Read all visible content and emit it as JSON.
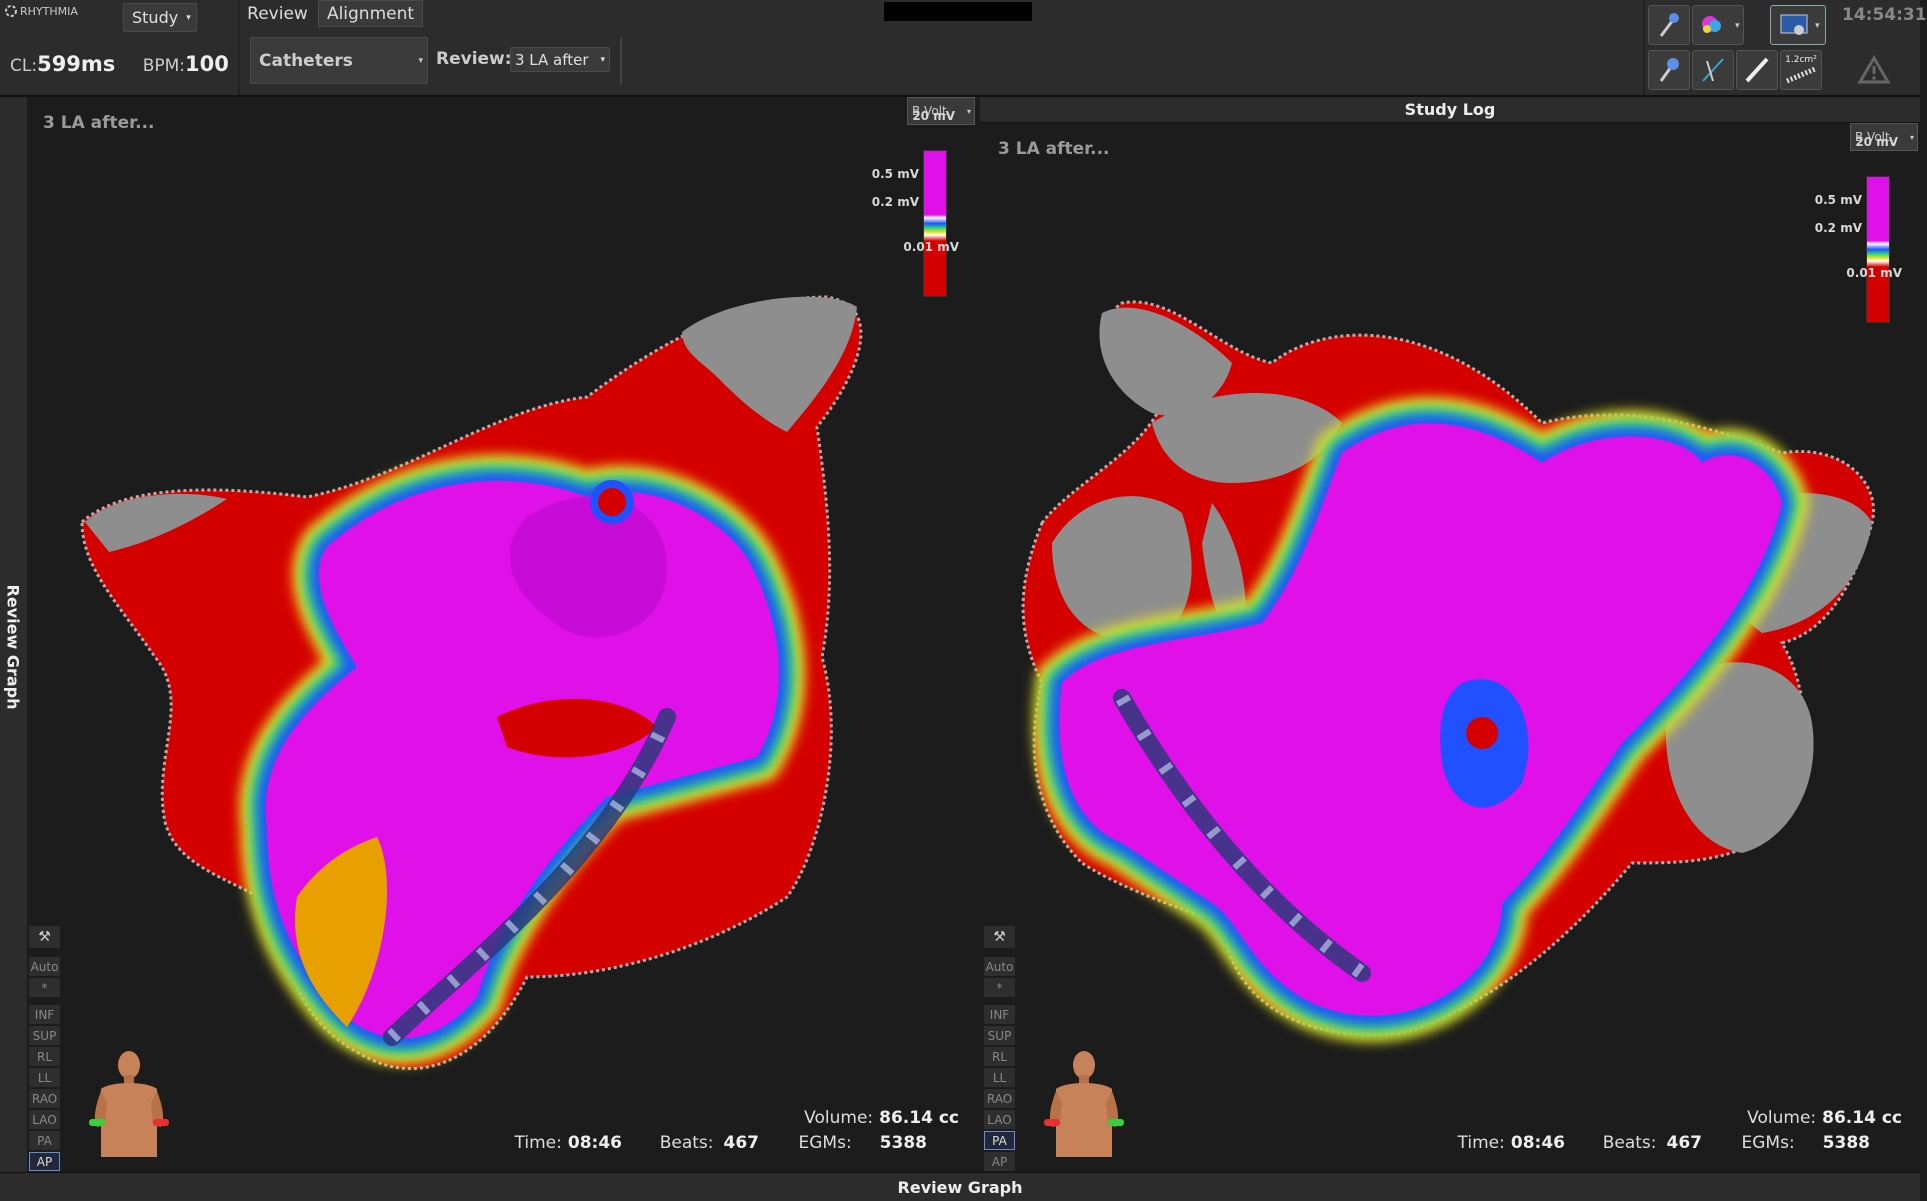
{
  "header": {
    "logo": "RHYTHMIA",
    "study_menu": "Study",
    "tabs": [
      "Review",
      "Alignment"
    ],
    "clock": "14:54:31",
    "cl_label": "CL:",
    "cl_value": "599ms",
    "bpm_label": "BPM:",
    "bpm_value": "100",
    "catheters": "Catheters",
    "review_label": "Review:",
    "review_value": "3 LA after",
    "tool_label": "1.2cm²"
  },
  "side_tab": "Review Graph",
  "study_log": "Study Log",
  "bottom_tab": "Review Graph",
  "panels": [
    {
      "title": "3 LA after...",
      "map_mode": "B.Volt.",
      "scale_labels": [
        "20 mV",
        "0.5 mV",
        "0.2 mV",
        "0.01 mV"
      ],
      "views": [
        "Auto",
        "*",
        "INF",
        "SUP",
        "RL",
        "LL",
        "RAO",
        "LAO",
        "PA",
        "AP"
      ],
      "active_view": "AP",
      "time_label": "Time:",
      "time": "08:46",
      "beats_label": "Beats:",
      "beats": "467",
      "volume_label": "Volume:",
      "volume": "86.14 cc",
      "egms_label": "EGMs:",
      "egms": "5388"
    },
    {
      "title": "3 LA after...",
      "map_mode": "B.Volt.",
      "scale_labels": [
        "20 mV",
        "0.5 mV",
        "0.2 mV",
        "0.01 mV"
      ],
      "views": [
        "Auto",
        "*",
        "INF",
        "SUP",
        "RL",
        "LL",
        "RAO",
        "LAO",
        "PA",
        "AP"
      ],
      "active_view": "PA",
      "time_label": "Time:",
      "time": "08:46",
      "beats_label": "Beats:",
      "beats": "467",
      "volume_label": "Volume:",
      "volume": "86.14 cc",
      "egms_label": "EGMs:",
      "egms": "5388"
    }
  ]
}
